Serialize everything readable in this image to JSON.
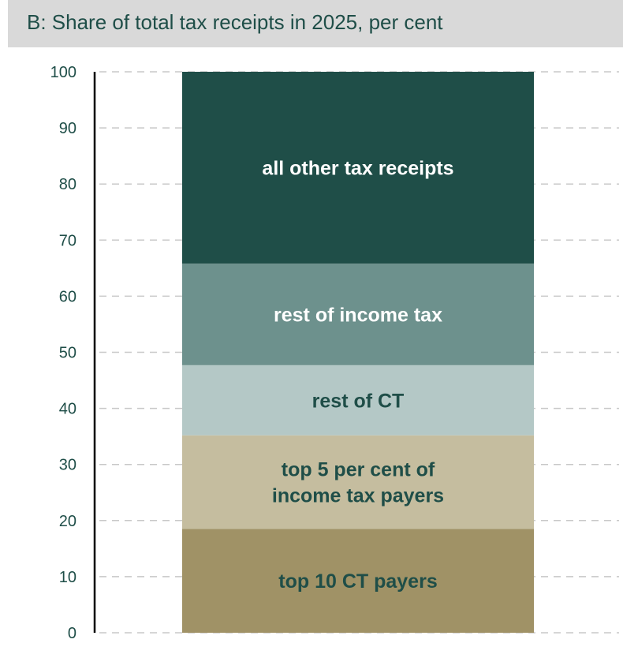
{
  "title": "B: Share of total tax receipts in 2025, per cent",
  "chart_data": {
    "type": "bar",
    "stacked": true,
    "title": "B: Share of total tax receipts in 2025, per cent",
    "xlabel": "",
    "ylabel": "",
    "ylim": [
      0,
      100
    ],
    "yticks": [
      "0",
      "10",
      "20",
      "30",
      "40",
      "50",
      "60",
      "70",
      "80",
      "90",
      "100"
    ],
    "grid": true,
    "segments": [
      {
        "label": [
          "top 10 CT payers"
        ],
        "value": 18.5,
        "color": "#a09266",
        "text_color": "#1f4e48"
      },
      {
        "label": [
          "top 5 per cent of",
          "income tax payers"
        ],
        "value": 16.7,
        "color": "#c5bd9f",
        "text_color": "#1f4e48"
      },
      {
        "label": [
          "rest of CT"
        ],
        "value": 12.5,
        "color": "#b4c8c6",
        "text_color": "#1f4e48"
      },
      {
        "label": [
          "rest of income tax"
        ],
        "value": 18.1,
        "color": "#6d918d",
        "text_color": "#ffffff"
      },
      {
        "label": [
          "all other tax receipts"
        ],
        "value": 34.2,
        "color": "#1f4e48",
        "text_color": "#ffffff"
      }
    ]
  }
}
